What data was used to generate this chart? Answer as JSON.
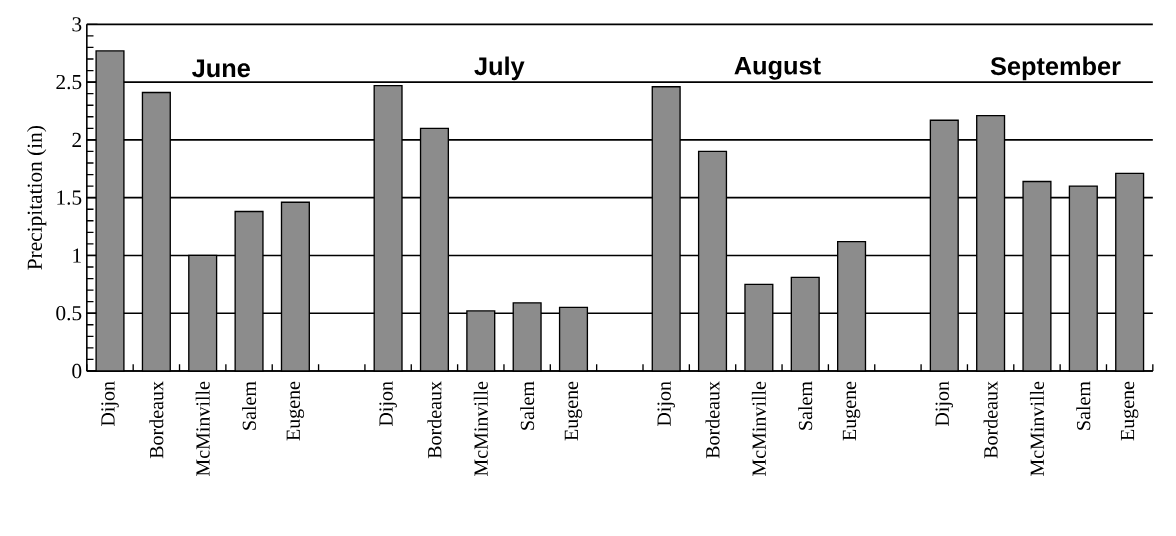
{
  "chart_data": {
    "type": "bar",
    "ylabel": "Precipitation (in)",
    "categories": [
      "Dijon",
      "Bordeaux",
      "McMinville",
      "Salem",
      "Eugene",
      null,
      "Dijon",
      "Bordeaux",
      "McMinville",
      "Salem",
      "Eugene",
      null,
      "Dijon",
      "Bordeaux",
      "McMinville",
      "Salem",
      "Eugene",
      null,
      "Dijon",
      "Bordeaux",
      "McMinville",
      "Salem",
      "Eugene"
    ],
    "values": [
      2.77,
      2.41,
      1.0,
      1.38,
      1.46,
      null,
      2.47,
      2.1,
      0.52,
      0.59,
      0.55,
      null,
      2.46,
      1.9,
      0.75,
      0.81,
      1.12,
      null,
      2.17,
      2.21,
      1.64,
      1.6,
      1.71
    ],
    "color": "#8c8c8c",
    "ylim": [
      0,
      3
    ],
    "yticks": [
      0,
      0.5,
      1,
      1.5,
      2,
      2.5,
      3
    ],
    "grid": "y",
    "annotations": [
      "June",
      "July",
      "August",
      "September"
    ]
  }
}
